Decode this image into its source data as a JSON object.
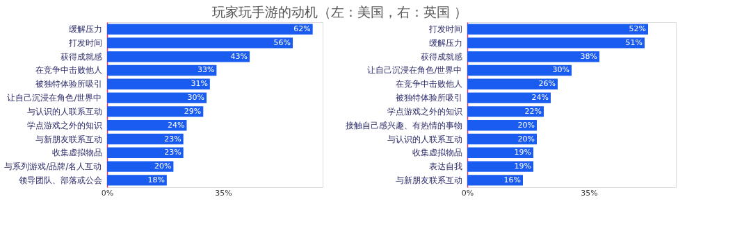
{
  "chart_data": [
    {
      "type": "bar",
      "title": "玩家玩手游的动机（左：美国，右：英国 ）",
      "orientation": "horizontal",
      "grid": false,
      "categories": [
        "缓解压力",
        "打发时间",
        "获得成就感",
        "在竞争中击败他人",
        "被独特体验所吸引",
        "让自己沉浸在角色/世界中",
        "与认识的人联系互动",
        "学点游戏之外的知识",
        "与新朋友联系互动",
        "收集虚拟物品",
        "与系列游戏/品牌/名人互动",
        "领导团队、部落或公会"
      ],
      "series": [
        {
          "color": "#1a5cf0",
          "values": [
            62,
            56,
            43,
            33,
            31,
            30,
            29,
            24,
            23,
            23,
            20,
            18
          ],
          "value_labels": [
            "62%",
            "56%",
            "43%",
            "33%",
            "31%",
            "30%",
            "29%",
            "24%",
            "23%",
            "23%",
            "20%",
            "18%"
          ]
        }
      ],
      "xlim": [
        0,
        65
      ],
      "xticks": [
        {
          "value": 0,
          "label": "0%"
        },
        {
          "value": 35,
          "label": "35%"
        }
      ]
    },
    {
      "type": "bar",
      "orientation": "horizontal",
      "grid": false,
      "categories": [
        "打发时间",
        "缓解压力",
        "获得成就感",
        "让自己沉浸在角色/世界中",
        "在竞争中击败他人",
        "被独特体验所吸引",
        "学点游戏之外的知识",
        "接触自己感兴趣、有热情的事物",
        "与认识的人联系互动",
        "收集虚拟物品",
        "表达自我",
        "与新朋友联系互动"
      ],
      "series": [
        {
          "color": "#1a5cf0",
          "values": [
            52,
            51,
            38,
            30,
            26,
            24,
            22,
            20,
            20,
            19,
            19,
            16
          ],
          "value_labels": [
            "52%",
            "51%",
            "38%",
            "30%",
            "26%",
            "24%",
            "22%",
            "20%",
            "20%",
            "19%",
            "19%",
            "16%"
          ]
        }
      ],
      "xlim": [
        0,
        60
      ],
      "xticks": [
        {
          "value": 0,
          "label": "0%"
        },
        {
          "value": 35,
          "label": "35%"
        }
      ]
    }
  ]
}
